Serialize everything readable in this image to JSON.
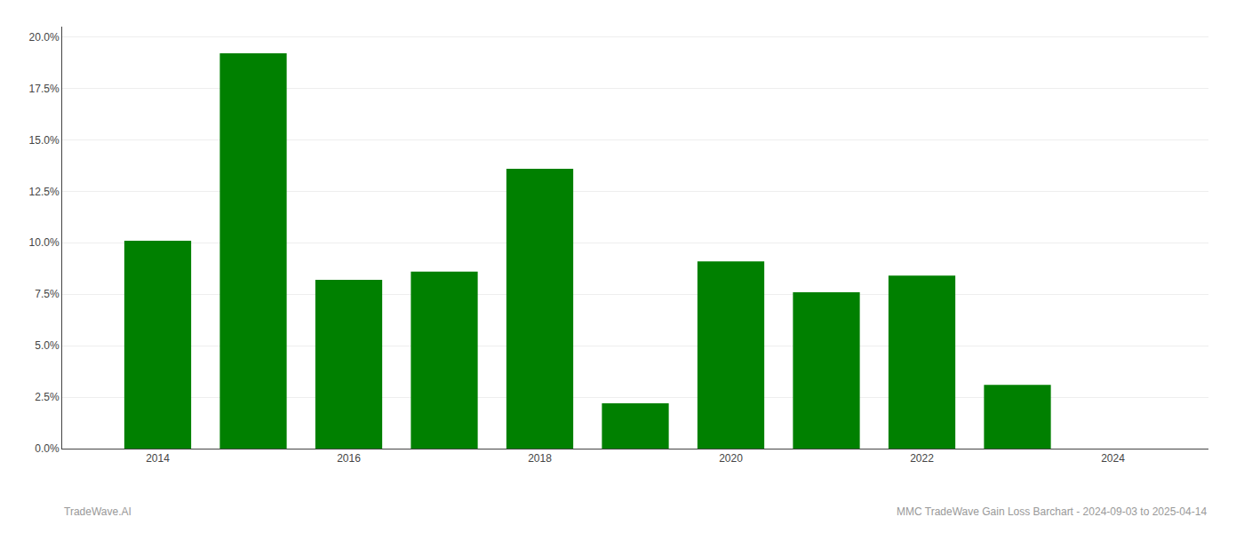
{
  "chart_data": {
    "type": "bar",
    "x": [
      2014,
      2015,
      2016,
      2017,
      2018,
      2019,
      2020,
      2021,
      2022,
      2023,
      2024
    ],
    "values": [
      0.101,
      0.192,
      0.082,
      0.086,
      0.136,
      0.022,
      0.091,
      0.076,
      0.084,
      0.031,
      0.0
    ],
    "color": "#008000",
    "xlim": [
      2013.0,
      2025.0
    ],
    "xticks": [
      2014,
      2016,
      2018,
      2020,
      2022,
      2024
    ],
    "ylim": [
      0.0,
      0.205
    ],
    "yticks": [
      {
        "value": 0.0,
        "label": "0.0%"
      },
      {
        "value": 0.025,
        "label": "2.5%"
      },
      {
        "value": 0.05,
        "label": "5.0%"
      },
      {
        "value": 0.075,
        "label": "7.5%"
      },
      {
        "value": 0.1,
        "label": "10.0%"
      },
      {
        "value": 0.125,
        "label": "12.5%"
      },
      {
        "value": 0.15,
        "label": "15.0%"
      },
      {
        "value": 0.175,
        "label": "17.5%"
      },
      {
        "value": 0.2,
        "label": "20.0%"
      }
    ],
    "grid": true,
    "annotations": [
      "TradeWave.AI",
      "MMC TradeWave Gain Loss Barchart - 2024-09-03 to 2025-04-14"
    ]
  }
}
